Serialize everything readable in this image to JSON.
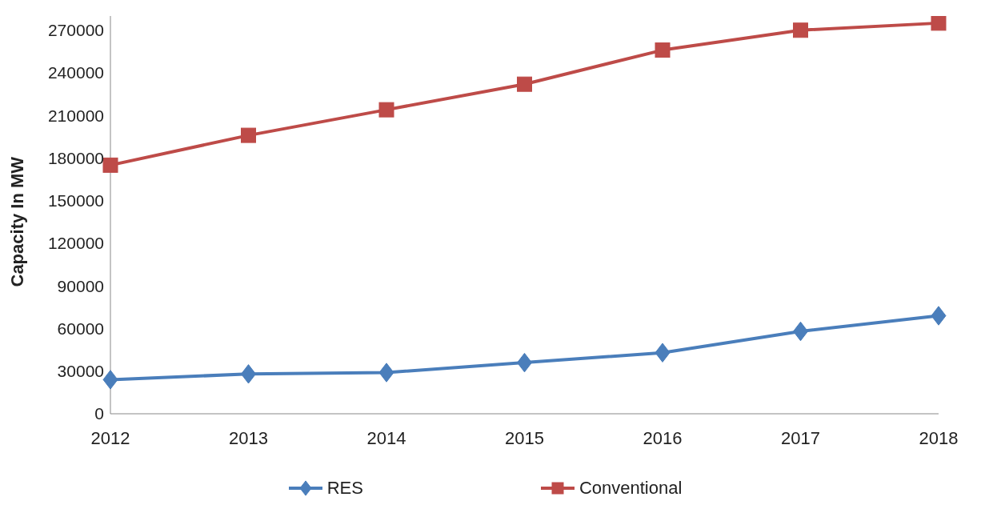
{
  "chart_data": {
    "type": "line",
    "ylabel": "Capacity In MW",
    "categories": [
      "2012",
      "2013",
      "2014",
      "2015",
      "2016",
      "2017",
      "2018"
    ],
    "series": [
      {
        "name": "RES",
        "color": "#4a7ebb",
        "marker": "diamond",
        "values": [
          24000,
          28000,
          29000,
          36000,
          43000,
          58000,
          69000
        ]
      },
      {
        "name": "Conventional",
        "color": "#be4b48",
        "marker": "square",
        "values": [
          175000,
          196000,
          214000,
          232000,
          256000,
          270000,
          275000
        ]
      }
    ],
    "ylim": [
      0,
      280000
    ],
    "yticks": [
      0,
      30000,
      60000,
      90000,
      120000,
      150000,
      180000,
      210000,
      240000,
      270000
    ],
    "grid": false,
    "legend": "bottom"
  }
}
